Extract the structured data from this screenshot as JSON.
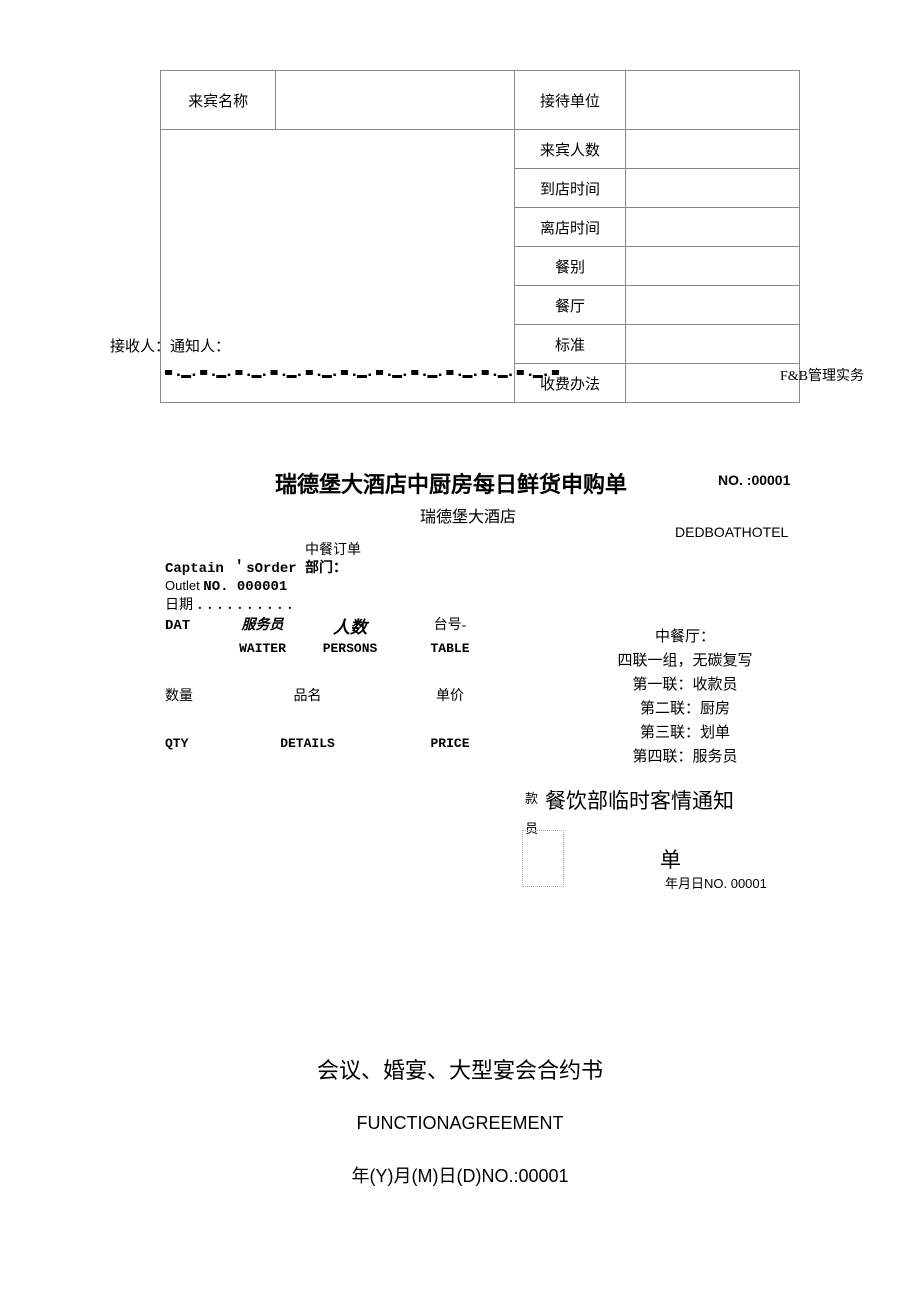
{
  "top_table": {
    "guest_name_label": "来宾名称",
    "reception_unit_label": "接待单位",
    "guest_count_label": "来宾人数",
    "arrival_time_label": "到店时间",
    "departure_time_label": "离店时间",
    "meal_type_label": "餐别",
    "restaurant_label": "餐厅",
    "standard_label": "标准",
    "charge_method_label": "收费办法"
  },
  "receiver_line": "接收人：通知人：",
  "divider_pattern": "▀ ▪▬▪ ▀ ▪▬▪ ▀ ▪▬▪ ▀ ▪▬▪ ▀ ▪▬▪ ▀ ▪▬▪ ▀ ▪▬▪ ▀ ▪▬▪ ▀ ▪▬▪ ▀ ▪▬▪ ▀ ▪▬▪ ▀",
  "fb_label": "F&B管理实务",
  "mid": {
    "title": "瑞德堡大酒店中厨房每日鲜货申购单",
    "no": "NO. :00001",
    "sub": "瑞德堡大酒店",
    "hotel_en": "DEDBOATHOTEL"
  },
  "order": {
    "line1": "中餐订单",
    "line2": "Captain ＇sOrder 部门：",
    "line3_a": "Outlet ",
    "line3_b": "NO. 000001",
    "line4": "日期",
    "dots": "．．．．．．．．．．",
    "head_cn": {
      "c1": "DAT",
      "c2": "服务员",
      "c3": "人数",
      "c4": "台号-"
    },
    "head_en": {
      "c1": "",
      "c2": "WAITER",
      "c3": "PERSONS",
      "c4": "TABLE"
    },
    "row2_cn": {
      "d1": "数量",
      "d2": "品名",
      "d3": "单价"
    },
    "row2_en": {
      "d1": "QTY",
      "d2": "DETAILS",
      "d3": "PRICE"
    }
  },
  "right_notes": {
    "l1": "中餐厅：",
    "l2": "四联一组，无碳复写",
    "l3": "第一联：收款员",
    "l4": "第二联：厨房",
    "l5": "第三联：划单",
    "l6": "第四联：服务员"
  },
  "notice": {
    "small1": "款",
    "main": "餐饮部临时客情通知",
    "small2": "员",
    "dan": "单",
    "date": "年月日NO. 00001"
  },
  "bottom": {
    "t1": "会议、婚宴、大型宴会合约书",
    "t2": "FUNCTIONAGREEMENT",
    "t3": "年(Y)月(M)日(D)NO.:00001"
  }
}
